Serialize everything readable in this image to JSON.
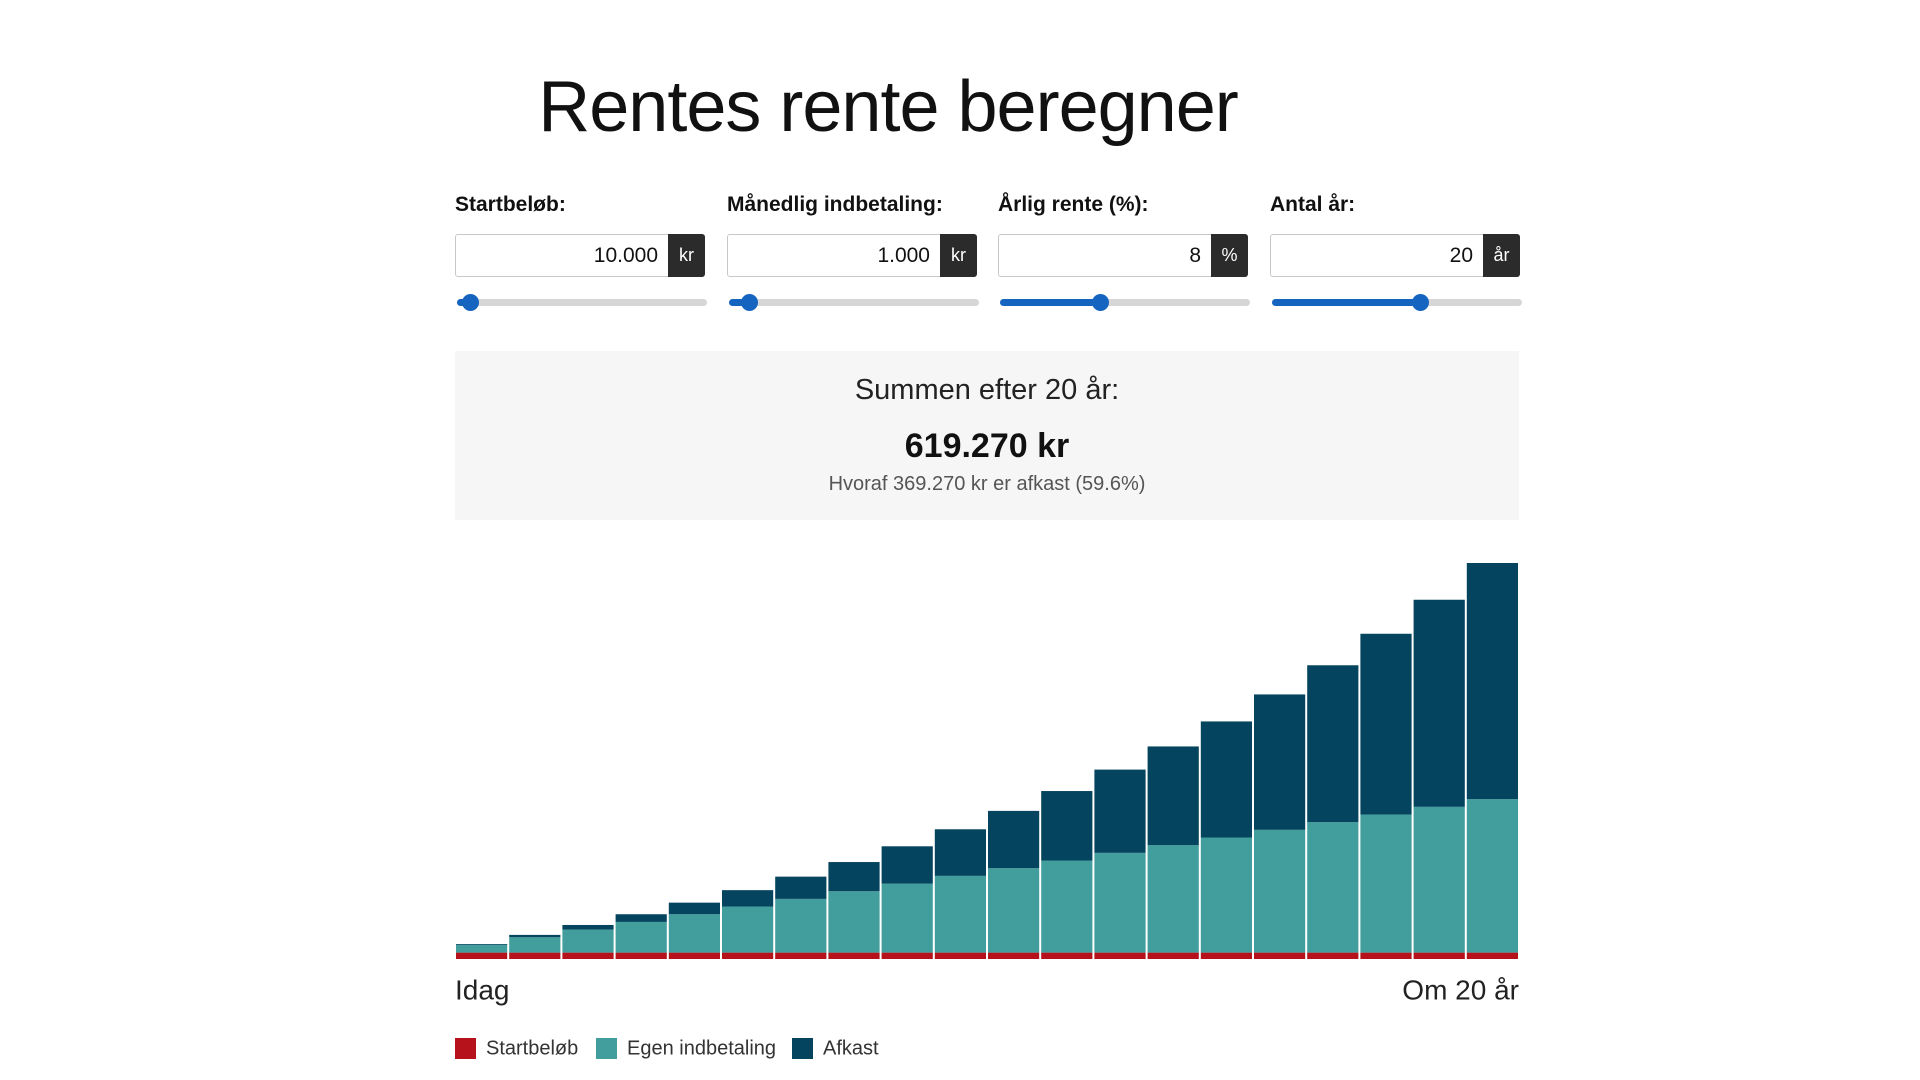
{
  "title": "Rentes rente beregner",
  "inputs": [
    {
      "label": "Startbeløb:",
      "value": "10.000",
      "unit": "kr"
    },
    {
      "label": "Månedlig indbetaling:",
      "value": "1.000",
      "unit": "kr"
    },
    {
      "label": "Årlig rente (%):",
      "value": "8",
      "unit": "%"
    },
    {
      "label": "Antal år:",
      "value": "20",
      "unit": "år"
    }
  ],
  "summary": {
    "heading": "Summen efter 20 år:",
    "total": "619.270 kr",
    "detail": "Hvoraf 369.270 kr er afkast (59.6%)"
  },
  "chart_data": {
    "type": "bar",
    "stacked": true,
    "x_start_label": "Idag",
    "x_end_label": "Om 20 år",
    "series": [
      {
        "name": "Startbeløb",
        "color": "#b5121b",
        "values": [
          10000,
          10000,
          10000,
          10000,
          10000,
          10000,
          10000,
          10000,
          10000,
          10000,
          10000,
          10000,
          10000,
          10000,
          10000,
          10000,
          10000,
          10000,
          10000,
          10000
        ]
      },
      {
        "name": "Egen indbetaling",
        "color": "#429e9d",
        "values": [
          12000,
          24000,
          36000,
          48000,
          60000,
          72000,
          84000,
          96000,
          108000,
          120000,
          132000,
          144000,
          156000,
          168000,
          180000,
          192000,
          204000,
          216000,
          228000,
          240000
        ]
      },
      {
        "name": "Afkast",
        "color": "#05445e",
        "values": [
          1314,
          3693,
          7222,
          11994,
          18107,
          25670,
          34797,
          45614,
          58258,
          72872,
          89615,
          108660,
          130186,
          154395,
          181501,
          211734,
          245346,
          282608,
          323811,
          369270
        ]
      }
    ]
  }
}
